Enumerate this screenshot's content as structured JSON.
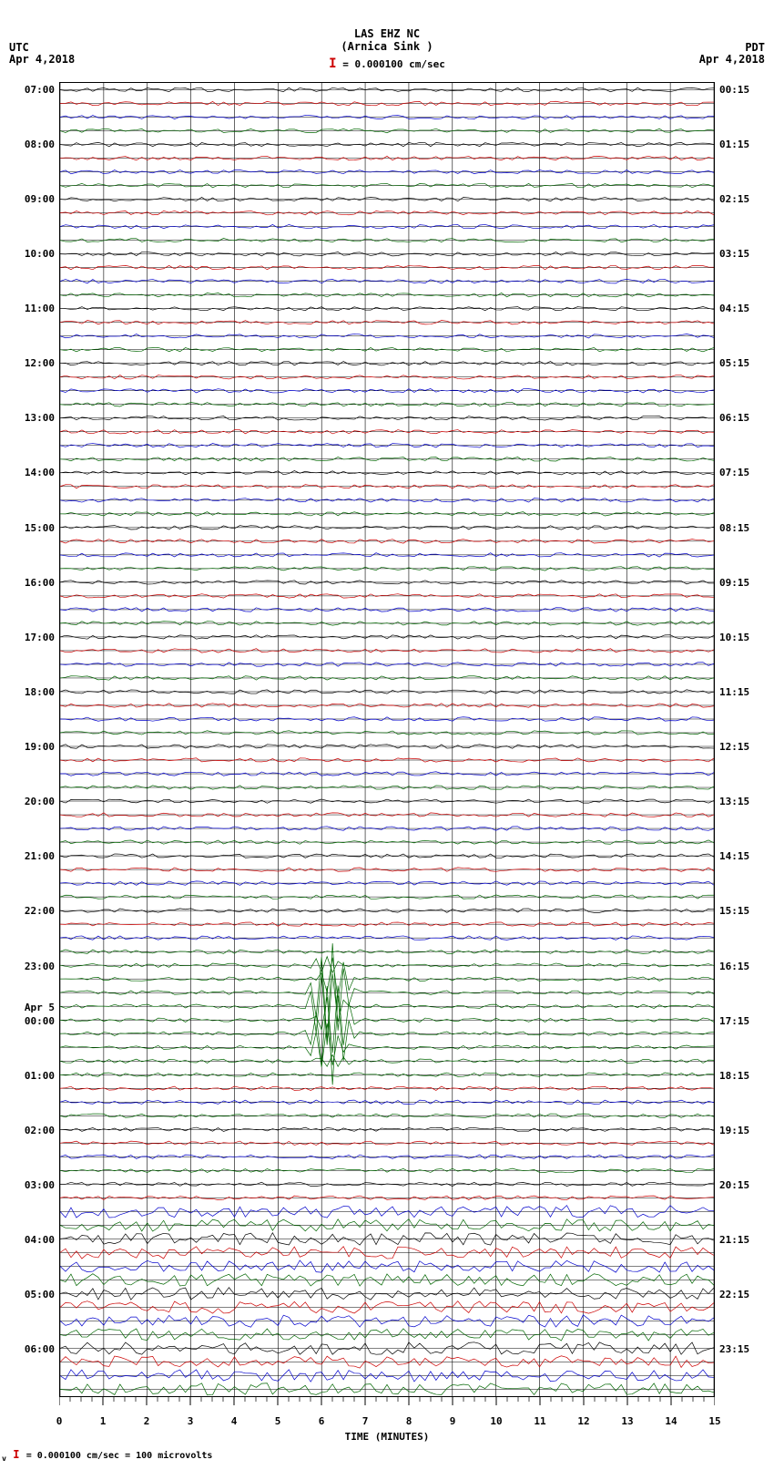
{
  "header": {
    "title": "LAS EHZ NC",
    "subtitle": "(Arnica Sink )",
    "scale": "= 0.000100 cm/sec"
  },
  "tz": {
    "left_tz": "UTC",
    "left_date": "Apr 4,2018",
    "right_tz": "PDT",
    "right_date": "Apr 4,2018",
    "day2_label": "Apr 5"
  },
  "plot": {
    "type": "helicorder",
    "x_min": 0,
    "x_max": 15,
    "x_ticks": [
      0,
      1,
      2,
      3,
      4,
      5,
      6,
      7,
      8,
      9,
      10,
      11,
      12,
      13,
      14,
      15
    ],
    "x_minor_per_major": 4,
    "x_title": "TIME (MINUTES)",
    "rows_total": 96,
    "row_spacing": 1,
    "trace_colors_cycle": [
      "#000000",
      "#cc0000",
      "#0000cc",
      "#006600"
    ],
    "grid_color": "#000000",
    "background_color": "#ffffff",
    "left_hour_labels": [
      {
        "row": 0,
        "text": "07:00"
      },
      {
        "row": 4,
        "text": "08:00"
      },
      {
        "row": 8,
        "text": "09:00"
      },
      {
        "row": 12,
        "text": "10:00"
      },
      {
        "row": 16,
        "text": "11:00"
      },
      {
        "row": 20,
        "text": "12:00"
      },
      {
        "row": 24,
        "text": "13:00"
      },
      {
        "row": 28,
        "text": "14:00"
      },
      {
        "row": 32,
        "text": "15:00"
      },
      {
        "row": 36,
        "text": "16:00"
      },
      {
        "row": 40,
        "text": "17:00"
      },
      {
        "row": 44,
        "text": "18:00"
      },
      {
        "row": 48,
        "text": "19:00"
      },
      {
        "row": 52,
        "text": "20:00"
      },
      {
        "row": 56,
        "text": "21:00"
      },
      {
        "row": 60,
        "text": "22:00"
      },
      {
        "row": 64,
        "text": "23:00"
      },
      {
        "row": 68,
        "text": "00:00"
      },
      {
        "row": 72,
        "text": "01:00"
      },
      {
        "row": 76,
        "text": "02:00"
      },
      {
        "row": 80,
        "text": "03:00"
      },
      {
        "row": 84,
        "text": "04:00"
      },
      {
        "row": 88,
        "text": "05:00"
      },
      {
        "row": 92,
        "text": "06:00"
      }
    ],
    "right_hour_labels": [
      {
        "row": 0,
        "text": "00:15"
      },
      {
        "row": 4,
        "text": "01:15"
      },
      {
        "row": 8,
        "text": "02:15"
      },
      {
        "row": 12,
        "text": "03:15"
      },
      {
        "row": 16,
        "text": "04:15"
      },
      {
        "row": 20,
        "text": "05:15"
      },
      {
        "row": 24,
        "text": "06:15"
      },
      {
        "row": 28,
        "text": "07:15"
      },
      {
        "row": 32,
        "text": "08:15"
      },
      {
        "row": 36,
        "text": "09:15"
      },
      {
        "row": 40,
        "text": "10:15"
      },
      {
        "row": 44,
        "text": "11:15"
      },
      {
        "row": 48,
        "text": "12:15"
      },
      {
        "row": 52,
        "text": "13:15"
      },
      {
        "row": 56,
        "text": "14:15"
      },
      {
        "row": 60,
        "text": "15:15"
      },
      {
        "row": 64,
        "text": "16:15"
      },
      {
        "row": 68,
        "text": "17:15"
      },
      {
        "row": 72,
        "text": "18:15"
      },
      {
        "row": 76,
        "text": "19:15"
      },
      {
        "row": 80,
        "text": "20:15"
      },
      {
        "row": 84,
        "text": "21:15"
      },
      {
        "row": 88,
        "text": "22:15"
      },
      {
        "row": 92,
        "text": "23:15"
      }
    ],
    "day2_row": 67,
    "noise_amplitude_base": 0.15,
    "noise_rows_elevated": {
      "start": 82,
      "end": 95,
      "amplitude": 0.45
    },
    "event": {
      "row_start": 63,
      "row_end": 72,
      "x_center": 6.2,
      "x_width": 1.2,
      "max_amplitude": 6.0,
      "color": "#006600"
    }
  },
  "footer": {
    "text": "= 0.000100 cm/sec =    100 microvolts"
  }
}
